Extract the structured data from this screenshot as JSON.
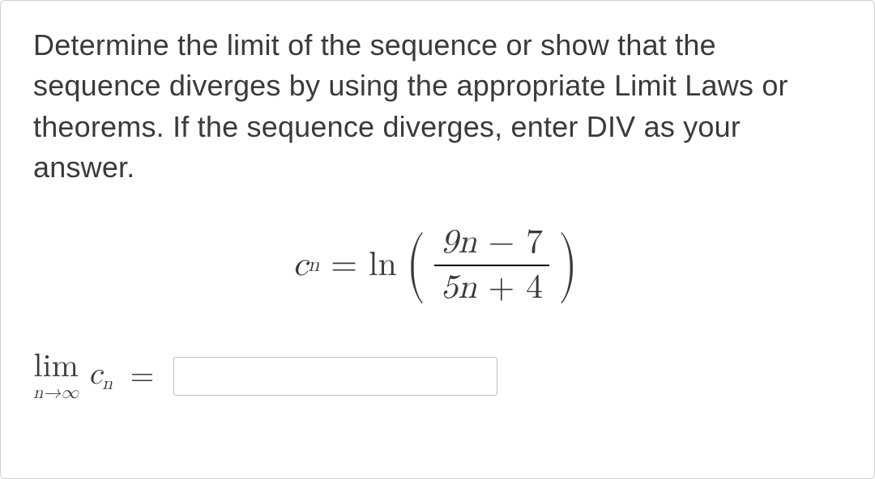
{
  "problem": {
    "text": "Determine the limit of the sequence or show that the sequence diverges by using the appropriate Limit Laws or theorems. If the sequence diverges, enter DIV as your answer."
  },
  "equation": {
    "lhs_var": "c",
    "lhs_sub": "n",
    "eq": "=",
    "func": "ln",
    "numerator": "9n − 7",
    "denominator": "5n + 4"
  },
  "answer": {
    "lim": "lim",
    "lim_under": "n→∞",
    "var": "c",
    "var_sub": "n",
    "eq": "=",
    "value": ""
  },
  "styling": {
    "body_font": "Arial",
    "math_font": "Cambria Math / Latin Modern",
    "text_color": "#3a3a3a",
    "text_size_pt": 27,
    "equation_size_pt": 32,
    "input_border": "#bdbdbd",
    "background": "#ffffff",
    "outer_border": "#d0d0d0"
  }
}
